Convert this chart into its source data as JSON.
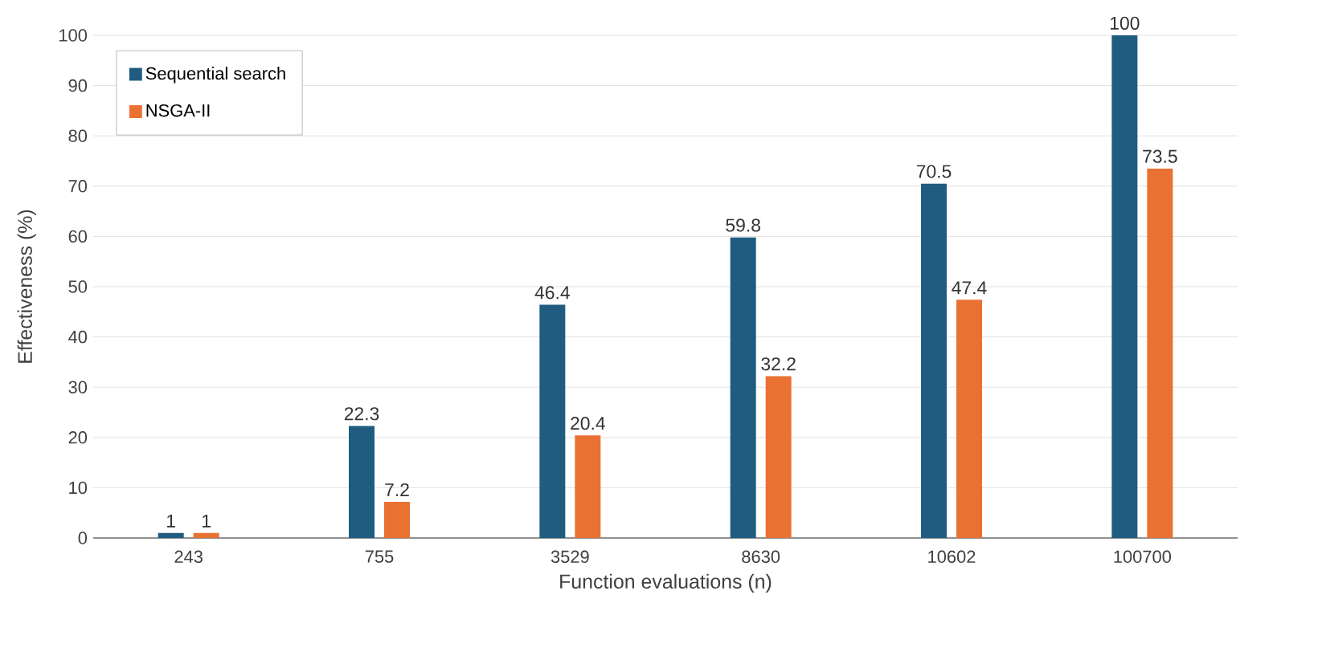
{
  "chart_data": {
    "type": "bar",
    "xlabel": "Function evaluations (n)",
    "ylabel": "Effectiveness (%)",
    "categories": [
      "243",
      "755",
      "3529",
      "8630",
      "10602",
      "100700"
    ],
    "series": [
      {
        "name": "Sequential search",
        "color": "#1f5c80",
        "values": [
          1,
          22.3,
          46.4,
          59.8,
          70.5,
          100
        ]
      },
      {
        "name": "NSGA-II",
        "color": "#e97132",
        "values": [
          1,
          7.2,
          20.4,
          32.2,
          47.4,
          73.5
        ]
      }
    ],
    "ylim": [
      0,
      100
    ],
    "yticks": [
      0,
      10,
      20,
      30,
      40,
      50,
      60,
      70,
      80,
      90,
      100
    ],
    "grid": "y",
    "legend": "top left",
    "data_labels": true
  }
}
